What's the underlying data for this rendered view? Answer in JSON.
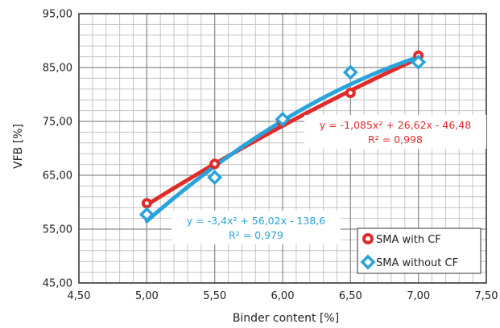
{
  "chart_data": {
    "type": "scatter",
    "xlabel": "Binder content [%]",
    "ylabel": "VFB [%]",
    "xlim": [
      4.5,
      7.5
    ],
    "ylim": [
      45,
      95
    ],
    "xticks": [
      "4,50",
      "5,00",
      "5,50",
      "6,00",
      "6,50",
      "7,00",
      "7,50"
    ],
    "yticks": [
      "45,00",
      "55,00",
      "65,00",
      "75,00",
      "85,00",
      "95,00"
    ],
    "grid": true,
    "minor_grid": true,
    "legend_position": "bottom-right",
    "series": [
      {
        "name": "SMA with CF",
        "marker": "circle",
        "color": "#e02b2b",
        "x": [
          5.0,
          5.5,
          6.0,
          6.5,
          7.0
        ],
        "y": [
          59.8,
          67.1,
          74.8,
          80.3,
          87.2
        ],
        "trendline": {
          "a": -1.085,
          "b": 26.62,
          "c": -46.48
        },
        "equation": "y = -1,085x² + 26,62x - 46,48",
        "r2": "R² = 0,998"
      },
      {
        "name": "SMA without CF",
        "marker": "diamond",
        "color": "#2aa3db",
        "x": [
          5.0,
          5.5,
          6.0,
          6.5,
          7.0
        ],
        "y": [
          57.7,
          64.6,
          75.4,
          84.1,
          86.0
        ],
        "trendline": {
          "a": -3.4,
          "b": 56.02,
          "c": -138.6
        },
        "equation": "y = -3,4x² + 56,02x - 138,6",
        "r2": "R² = 0,979"
      }
    ]
  }
}
